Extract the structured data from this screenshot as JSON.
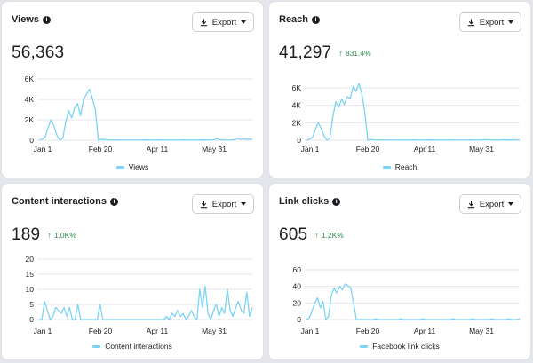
{
  "colors": {
    "line": "#7dd3f5",
    "grid": "#e4e6eb",
    "positive": "#2e8a4e"
  },
  "icons": {
    "info": "info-icon",
    "export": "download-icon",
    "dropdown": "caret-down-icon"
  },
  "export_label": "Export",
  "cards": [
    {
      "title": "Views",
      "value": "56,363",
      "change": "",
      "legend": "Views",
      "chart_data": {
        "type": "line",
        "x_ticks": [
          "Jan 1",
          "Feb 20",
          "Apr 11",
          "May 31"
        ],
        "y_ticks": [
          "0",
          "2K",
          "4K",
          "6K"
        ],
        "ylim": [
          0,
          6000
        ],
        "series": [
          {
            "name": "Views",
            "values": [
              0,
              100,
              300,
              1200,
              2000,
              1400,
              500,
              0,
              200,
              1800,
              2900,
              2200,
              3200,
              3600,
              2400,
              4000,
              4500,
              5000,
              4100,
              3000,
              0,
              100,
              50,
              40,
              30,
              20,
              20,
              10,
              10,
              10,
              10,
              10,
              20,
              10,
              10,
              20,
              30,
              10,
              10,
              10,
              10,
              30,
              20,
              10,
              10,
              20,
              10,
              10,
              10,
              30,
              10,
              10,
              20,
              10,
              10,
              30,
              20,
              10,
              10,
              40,
              150,
              60,
              30,
              20,
              10,
              20,
              60,
              180,
              90,
              140,
              60,
              120,
              100
            ]
          }
        ]
      }
    },
    {
      "title": "Reach",
      "value": "41,297",
      "change": "831.4%",
      "legend": "Reach",
      "chart_data": {
        "type": "line",
        "x_ticks": [
          "Jan 1",
          "Feb 20",
          "Apr 11",
          "May 31"
        ],
        "y_ticks": [
          "0",
          "2K",
          "4K",
          "6K"
        ],
        "ylim": [
          0,
          6000
        ],
        "series": [
          {
            "name": "Reach",
            "values": [
              0,
              100,
              300,
              1200,
              2000,
              1400,
              500,
              0,
              200,
              2600,
              4400,
              3800,
              4700,
              4100,
              5000,
              4800,
              6200,
              5600,
              6500,
              5200,
              3100,
              0,
              100,
              50,
              40,
              30,
              20,
              20,
              10,
              10,
              10,
              10,
              10,
              20,
              10,
              10,
              20,
              30,
              10,
              10,
              10,
              10,
              30,
              20,
              10,
              10,
              20,
              10,
              10,
              10,
              30,
              10,
              10,
              20,
              10,
              10,
              30,
              20,
              10,
              10,
              40,
              60,
              60,
              30,
              20,
              10,
              20,
              60,
              40,
              30,
              40,
              30,
              20,
              10
            ]
          }
        ]
      }
    },
    {
      "title": "Content interactions",
      "value": "189",
      "change": "1.0K%",
      "legend": "Content interactions",
      "chart_data": {
        "type": "line",
        "x_ticks": [
          "Jan 1",
          "Feb 20",
          "Apr 11",
          "May 31"
        ],
        "y_ticks": [
          "0",
          "5",
          "10",
          "15",
          "20"
        ],
        "ylim": [
          0,
          20
        ],
        "series": [
          {
            "name": "Content interactions",
            "values": [
              0,
              0,
              6,
              3,
              0,
              1,
              4,
              3,
              2,
              4,
              1,
              4,
              0,
              0,
              5,
              0,
              0,
              0,
              0,
              0,
              0,
              0,
              5,
              0,
              0,
              0,
              0,
              0,
              0,
              0,
              0,
              0,
              0,
              0,
              0,
              0,
              0,
              0,
              0,
              0,
              0,
              0,
              0,
              0,
              0,
              0,
              1,
              0,
              2,
              1,
              3,
              1,
              2,
              0,
              1,
              3,
              1,
              0,
              10,
              4,
              11,
              2,
              0,
              3,
              5,
              1,
              4,
              2,
              10,
              3,
              1,
              4,
              6,
              3,
              2,
              9,
              1,
              4
            ]
          }
        ]
      }
    },
    {
      "title": "Link clicks",
      "value": "605",
      "change": "1.2K%",
      "legend": "Facebook link clicks",
      "chart_data": {
        "type": "line",
        "x_ticks": [
          "Jan 1",
          "Feb 20",
          "Apr 11",
          "May 31"
        ],
        "y_ticks": [
          "0",
          "20",
          "40",
          "60"
        ],
        "ylim": [
          0,
          60
        ],
        "series": [
          {
            "name": "Facebook link clicks",
            "values": [
              0,
              2,
              10,
              20,
              26,
              14,
              22,
              0,
              4,
              30,
              38,
              32,
              40,
              36,
              43,
              41,
              38,
              20,
              0,
              0,
              0,
              0,
              0,
              0,
              0,
              1,
              0,
              0,
              0,
              0,
              0,
              0,
              0,
              0,
              1,
              0,
              0,
              0,
              0,
              0,
              0,
              0,
              1,
              0,
              0,
              0,
              0,
              0,
              0,
              0,
              0,
              0,
              0,
              1,
              0,
              0,
              0,
              0,
              0,
              0,
              1,
              0,
              0,
              0,
              0,
              0,
              0,
              1,
              0,
              0,
              0,
              0,
              0,
              1,
              0,
              0,
              0,
              1
            ]
          }
        ]
      }
    }
  ]
}
